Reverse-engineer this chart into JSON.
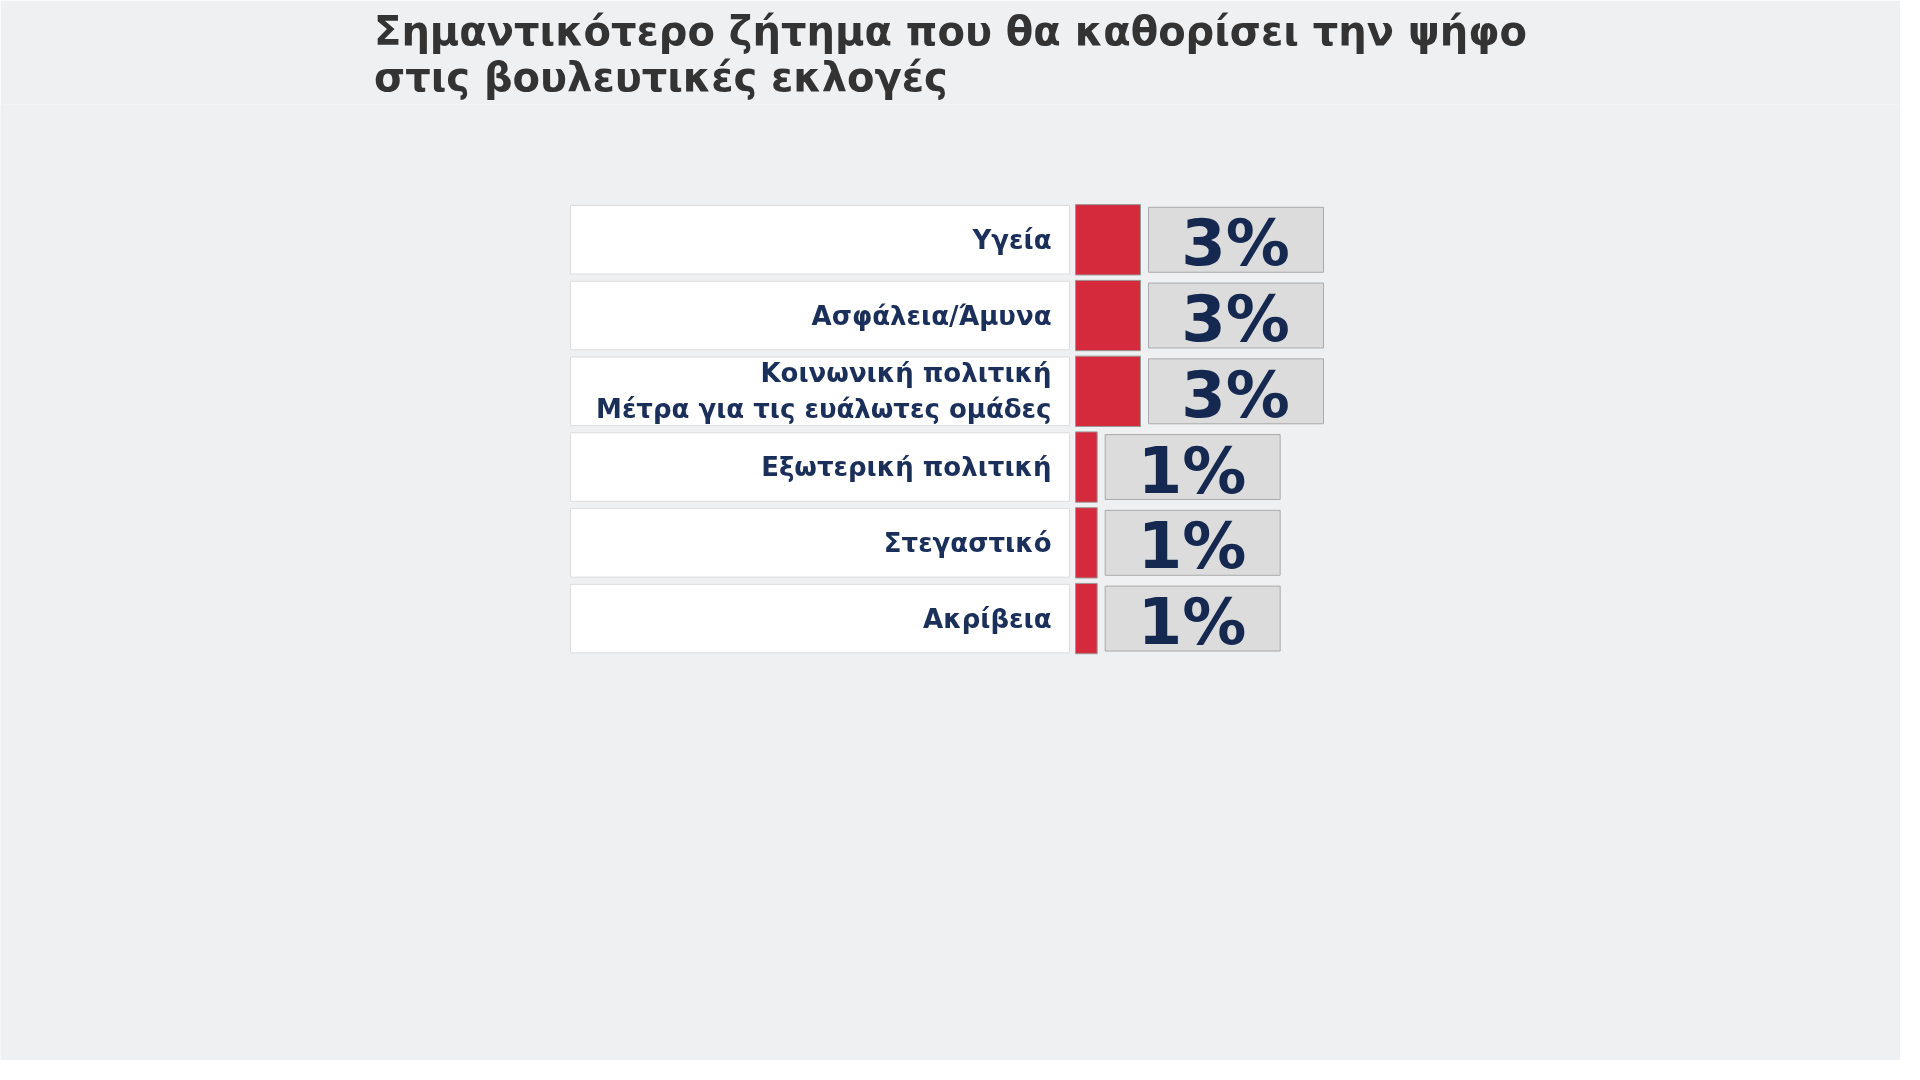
{
  "chart_data": {
    "type": "bar",
    "orientation": "horizontal",
    "title": "Σημαντικότερο ζήτημα που θα καθορίσει την ψήφο\nστις βουλευτικές εκλογές",
    "categories": [
      "Υγεία",
      "Ασφάλεια/Άμυνα",
      "Κοινωνική πολιτική\nΜέτρα για τις ευάλωτες ομάδες",
      "Εξωτερική πολιτική",
      "Στεγαστικό",
      "Ακρίβεια"
    ],
    "values": [
      3,
      3,
      3,
      1,
      1,
      1
    ],
    "value_labels": [
      "3%",
      "3%",
      "3%",
      "1%",
      "1%",
      "1%"
    ],
    "color": "#d42a3c"
  }
}
